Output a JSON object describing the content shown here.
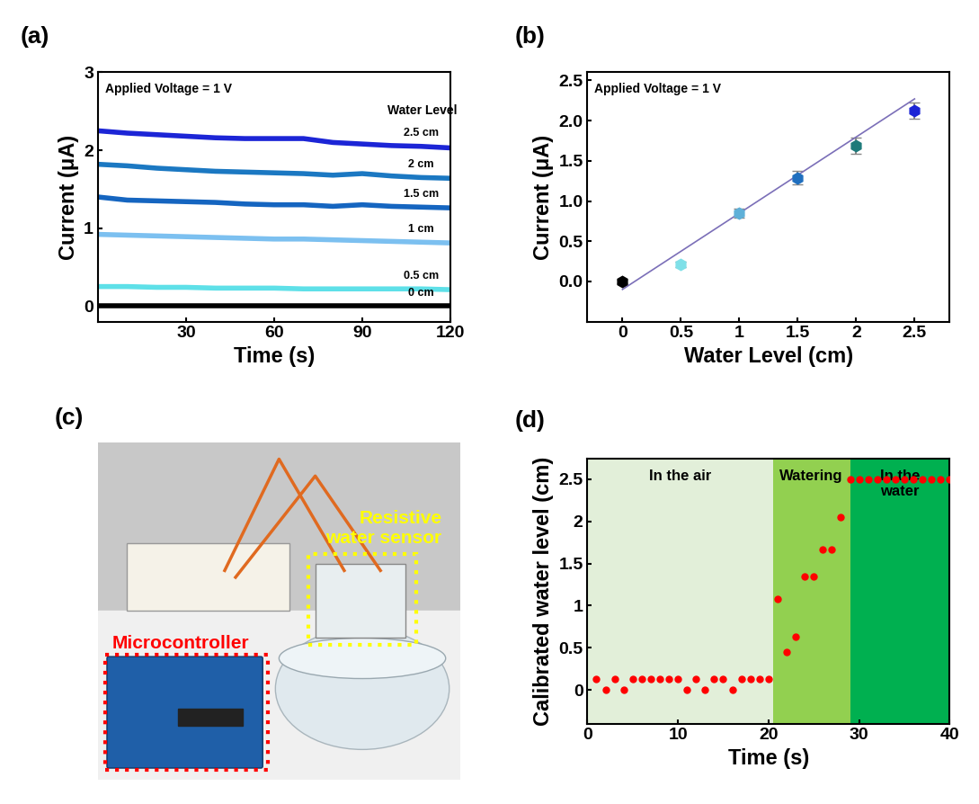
{
  "chart_data": [
    {
      "type": "line",
      "title": "(a)",
      "x_label": "Time (s)",
      "y_label": "Current (μA)",
      "annotations": [
        "Applied Voltage = 1 V",
        "Water Level"
      ],
      "x": [
        0,
        10,
        20,
        30,
        40,
        50,
        60,
        70,
        80,
        90,
        100,
        110,
        120
      ],
      "series": [
        {
          "name": "2.5 cm",
          "color": "#1c25d6",
          "values": [
            2.25,
            2.22,
            2.2,
            2.18,
            2.16,
            2.15,
            2.15,
            2.15,
            2.1,
            2.08,
            2.06,
            2.05,
            2.03
          ]
        },
        {
          "name": "2 cm",
          "color": "#1b78c2",
          "values": [
            1.82,
            1.8,
            1.77,
            1.75,
            1.73,
            1.72,
            1.71,
            1.7,
            1.68,
            1.7,
            1.67,
            1.65,
            1.64
          ]
        },
        {
          "name": "1.5 cm",
          "color": "#1565c0",
          "values": [
            1.4,
            1.36,
            1.35,
            1.34,
            1.33,
            1.31,
            1.3,
            1.3,
            1.28,
            1.3,
            1.28,
            1.27,
            1.26
          ]
        },
        {
          "name": "1 cm",
          "color": "#7cc0f0",
          "values": [
            0.92,
            0.91,
            0.9,
            0.89,
            0.88,
            0.87,
            0.86,
            0.86,
            0.85,
            0.84,
            0.83,
            0.82,
            0.81
          ]
        },
        {
          "name": "0.5 cm",
          "color": "#5ee0e8",
          "values": [
            0.25,
            0.25,
            0.24,
            0.24,
            0.23,
            0.23,
            0.23,
            0.22,
            0.22,
            0.22,
            0.22,
            0.22,
            0.21
          ]
        },
        {
          "name": "0 cm",
          "color": "#000000",
          "values": [
            0,
            0,
            0,
            0,
            0,
            0,
            0,
            0,
            0,
            0,
            0,
            0,
            0
          ]
        }
      ],
      "xlim": [
        0,
        120
      ],
      "xticks": [
        30,
        60,
        90,
        120
      ],
      "ylim": [
        -0.2,
        3
      ],
      "yticks": [
        0,
        1,
        2,
        3
      ]
    },
    {
      "type": "scatter",
      "title": "(b)",
      "x_label": "Water Level (cm)",
      "y_label": "Current (μA)",
      "annotations": [
        "Applied Voltage = 1 V"
      ],
      "series": [
        {
          "type": "scatter",
          "marker": "h",
          "x": [
            0,
            0.5,
            1,
            1.5,
            2,
            2.5
          ],
          "values": [
            0,
            0.21,
            0.85,
            1.29,
            1.69,
            2.12
          ],
          "error": [
            0.02,
            0.03,
            0.06,
            0.08,
            0.1,
            0.1
          ],
          "colors": [
            "#000000",
            "#7fe0e8",
            "#5fb0d8",
            "#1f6fbf",
            "#1d7a7a",
            "#1c25d6"
          ]
        },
        {
          "type": "line",
          "line_style": "solid",
          "color": "#7b6fb8",
          "x": [
            0,
            2.5
          ],
          "values": [
            -0.1,
            2.27
          ]
        }
      ],
      "xlim": [
        -0.3,
        2.8
      ],
      "xticks": [
        0,
        0.5,
        1,
        1.5,
        2,
        2.5
      ],
      "ylim": [
        -0.5,
        2.6
      ],
      "yticks": [
        {
          "value": 0,
          "label": "0.0"
        },
        {
          "value": 0.5,
          "label": "0.5"
        },
        {
          "value": 1,
          "label": "1.0"
        },
        {
          "value": 1.5,
          "label": "1.5"
        },
        {
          "value": 2,
          "label": "2.0"
        },
        {
          "value": 2.5,
          "label": "2.5"
        }
      ]
    },
    {
      "type": "photo",
      "title": "(c)",
      "annotations": [
        "Microcontroller",
        "Resistive\nwater sensor"
      ]
    },
    {
      "type": "scatter",
      "title": "(d)",
      "x_label": "Time (s)",
      "y_label": "Calibrated water level (cm)",
      "marker": "o",
      "color": "#ff0000",
      "x": [
        1,
        2,
        3,
        4,
        5,
        6,
        7,
        8,
        9,
        10,
        11,
        12,
        13,
        14,
        15,
        16,
        17,
        18,
        19,
        20,
        21,
        22,
        23,
        24,
        25,
        26,
        27,
        28,
        29,
        30,
        31,
        32,
        33,
        34,
        35,
        36,
        37,
        38,
        39,
        40
      ],
      "values": [
        0.13,
        0,
        0.13,
        0,
        0.13,
        0.13,
        0.13,
        0.13,
        0.13,
        0.13,
        0,
        0.13,
        0,
        0.13,
        0.13,
        0,
        0.13,
        0.13,
        0.13,
        0.13,
        1.08,
        0.45,
        0.63,
        1.35,
        1.35,
        1.67,
        1.67,
        2.05,
        2.5,
        2.5,
        2.5,
        2.5,
        2.5,
        2.5,
        2.5,
        2.5,
        2.5,
        2.5,
        2.5,
        2.5
      ],
      "regions": [
        {
          "name": "In the air",
          "start": 0,
          "end": 20.5,
          "color": "#e2efd9"
        },
        {
          "name": "Watering",
          "start": 20.5,
          "end": 29,
          "color": "#92d050"
        },
        {
          "name": "In the\nwater",
          "start": 29,
          "end": 40,
          "color": "#00b050"
        }
      ],
      "xlim": [
        0,
        40
      ],
      "xticks": [
        0,
        10,
        20,
        30,
        40
      ],
      "ylim": [
        -0.4,
        2.75
      ],
      "yticks": [
        0,
        0.5,
        1,
        1.5,
        2,
        2.5
      ]
    }
  ]
}
